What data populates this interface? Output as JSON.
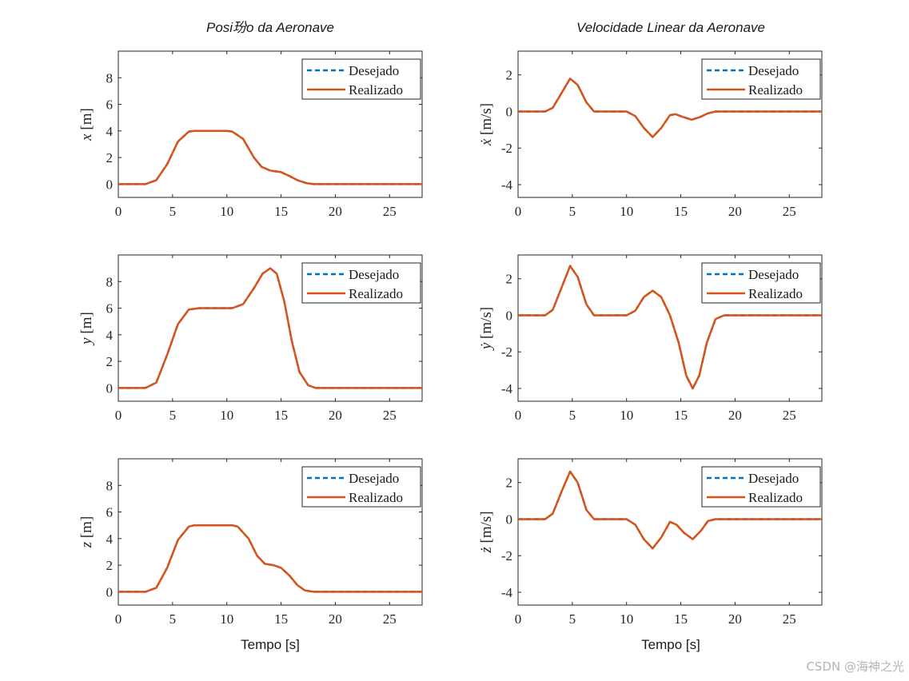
{
  "figure": {
    "titles": {
      "left": "Posi玢o da Aeronave",
      "right": "Velocidade Linear da Aeronave"
    },
    "xlabel": "Tempo [s]",
    "watermark": "CSDN @海神之光",
    "colors": {
      "desired": "#0072BD",
      "actual": "#D95319",
      "axis": "#262626"
    }
  },
  "chart_data": [
    {
      "id": "pos-x",
      "type": "line",
      "title": "Posi玢o da Aeronave",
      "ylabel": "x [m]",
      "ylabel_var": "x",
      "ylabel_unit": "[m]",
      "xlim": [
        0,
        28
      ],
      "ylim": [
        -1,
        10
      ],
      "xticks": [
        0,
        5,
        10,
        15,
        20,
        25
      ],
      "yticks": [
        0,
        2,
        4,
        6,
        8
      ],
      "legend": {
        "position": "top-right",
        "entries": [
          "Desejado",
          "Realizado"
        ]
      },
      "series": [
        {
          "name": "Desejado",
          "x": [
            0,
            2.5,
            3.5,
            4.5,
            5.5,
            6.5,
            7,
            10,
            10.5,
            11.5,
            12.5,
            13.2,
            14,
            15,
            15.8,
            16.5,
            17.3,
            18,
            28
          ],
          "y": [
            0,
            0,
            0.3,
            1.5,
            3.2,
            3.95,
            4,
            4,
            3.95,
            3.4,
            2.0,
            1.3,
            1.02,
            0.9,
            0.6,
            0.3,
            0.08,
            0,
            0
          ]
        },
        {
          "name": "Realizado",
          "x": [
            0,
            2.5,
            3.5,
            4.5,
            5.5,
            6.5,
            7,
            10,
            10.5,
            11.5,
            12.5,
            13.2,
            14,
            15,
            15.8,
            16.5,
            17.3,
            18,
            28
          ],
          "y": [
            0,
            0,
            0.3,
            1.5,
            3.2,
            3.95,
            4,
            4,
            3.95,
            3.4,
            2.0,
            1.3,
            1.02,
            0.9,
            0.6,
            0.3,
            0.08,
            0,
            0
          ]
        }
      ]
    },
    {
      "id": "vel-x",
      "type": "line",
      "title": "Velocidade Linear da Aeronave",
      "ylabel": "ẋ [m/s]",
      "ylabel_var": "ẋ",
      "ylabel_unit": "[m/s]",
      "xlim": [
        0,
        28
      ],
      "ylim": [
        -4.7,
        3.3
      ],
      "xticks": [
        0,
        5,
        10,
        15,
        20,
        25
      ],
      "yticks": [
        -4,
        -2,
        0,
        2
      ],
      "legend": {
        "position": "top-right",
        "entries": [
          "Desejado",
          "Realizado"
        ]
      },
      "series": [
        {
          "name": "Desejado",
          "x": [
            0,
            2.5,
            3.2,
            4,
            4.8,
            5.5,
            6.3,
            7,
            10,
            10.8,
            11.6,
            12.4,
            13.2,
            14,
            14.5,
            15.2,
            16,
            16.8,
            17.5,
            18.2,
            28
          ],
          "y": [
            0,
            0,
            0.2,
            1.0,
            1.8,
            1.45,
            0.5,
            0,
            0,
            -0.25,
            -0.9,
            -1.4,
            -0.9,
            -0.2,
            -0.15,
            -0.3,
            -0.45,
            -0.3,
            -0.1,
            0,
            0
          ]
        },
        {
          "name": "Realizado",
          "x": [
            0,
            2.5,
            3.2,
            4,
            4.8,
            5.5,
            6.3,
            7,
            10,
            10.8,
            11.6,
            12.4,
            13.2,
            14,
            14.5,
            15.2,
            16,
            16.8,
            17.5,
            18.2,
            28
          ],
          "y": [
            0,
            0,
            0.2,
            1.0,
            1.8,
            1.45,
            0.5,
            0,
            0,
            -0.25,
            -0.9,
            -1.4,
            -0.9,
            -0.2,
            -0.15,
            -0.3,
            -0.45,
            -0.3,
            -0.1,
            0,
            0
          ]
        }
      ]
    },
    {
      "id": "pos-y",
      "type": "line",
      "title": "",
      "ylabel": "y [m]",
      "ylabel_var": "y",
      "ylabel_unit": "[m]",
      "xlim": [
        0,
        28
      ],
      "ylim": [
        -1,
        10
      ],
      "xticks": [
        0,
        5,
        10,
        15,
        20,
        25
      ],
      "yticks": [
        0,
        2,
        4,
        6,
        8
      ],
      "legend": {
        "position": "top-right",
        "entries": [
          "Desejado",
          "Realizado"
        ]
      },
      "series": [
        {
          "name": "Desejado",
          "x": [
            0,
            2.5,
            3.5,
            4.5,
            5.5,
            6.5,
            7.5,
            10.5,
            11.5,
            12.5,
            13.3,
            14,
            14.6,
            15.3,
            16,
            16.7,
            17.5,
            18.2,
            28
          ],
          "y": [
            0,
            0,
            0.4,
            2.5,
            4.8,
            5.9,
            6.0,
            6.0,
            6.3,
            7.5,
            8.6,
            9.0,
            8.6,
            6.5,
            3.5,
            1.2,
            0.2,
            0,
            0
          ]
        },
        {
          "name": "Realizado",
          "x": [
            0,
            2.5,
            3.5,
            4.5,
            5.5,
            6.5,
            7.5,
            10.5,
            11.5,
            12.5,
            13.3,
            14,
            14.6,
            15.3,
            16,
            16.7,
            17.5,
            18.2,
            28
          ],
          "y": [
            0,
            0,
            0.4,
            2.5,
            4.8,
            5.9,
            6.0,
            6.0,
            6.3,
            7.5,
            8.6,
            9.0,
            8.6,
            6.5,
            3.5,
            1.2,
            0.2,
            0,
            0
          ]
        }
      ]
    },
    {
      "id": "vel-y",
      "type": "line",
      "title": "",
      "ylabel": "ẏ [m/s]",
      "ylabel_var": "ẏ",
      "ylabel_unit": "[m/s]",
      "xlim": [
        0,
        28
      ],
      "ylim": [
        -4.7,
        3.3
      ],
      "xticks": [
        0,
        5,
        10,
        15,
        20,
        25
      ],
      "yticks": [
        -4,
        -2,
        0,
        2
      ],
      "legend": {
        "position": "top-right",
        "entries": [
          "Desejado",
          "Realizado"
        ]
      },
      "series": [
        {
          "name": "Desejado",
          "x": [
            0,
            2.5,
            3.2,
            4,
            4.8,
            5.5,
            6.3,
            7,
            10,
            10.8,
            11.6,
            12.4,
            13.2,
            14,
            14.8,
            15.5,
            16.1,
            16.7,
            17.4,
            18.2,
            19,
            28
          ],
          "y": [
            0,
            0,
            0.3,
            1.5,
            2.7,
            2.1,
            0.6,
            0,
            0,
            0.25,
            1.0,
            1.35,
            1.0,
            0,
            -1.5,
            -3.3,
            -4.0,
            -3.3,
            -1.5,
            -0.2,
            0,
            0
          ]
        },
        {
          "name": "Realizado",
          "x": [
            0,
            2.5,
            3.2,
            4,
            4.8,
            5.5,
            6.3,
            7,
            10,
            10.8,
            11.6,
            12.4,
            13.2,
            14,
            14.8,
            15.5,
            16.1,
            16.7,
            17.4,
            18.2,
            19,
            28
          ],
          "y": [
            0,
            0,
            0.3,
            1.5,
            2.7,
            2.1,
            0.6,
            0,
            0,
            0.25,
            1.0,
            1.35,
            1.0,
            0,
            -1.5,
            -3.3,
            -4.0,
            -3.3,
            -1.5,
            -0.2,
            0,
            0
          ]
        }
      ]
    },
    {
      "id": "pos-z",
      "type": "line",
      "title": "",
      "ylabel": "z [m]",
      "ylabel_var": "z",
      "ylabel_unit": "[m]",
      "xlim": [
        0,
        28
      ],
      "ylim": [
        -1,
        10
      ],
      "xticks": [
        0,
        5,
        10,
        15,
        20,
        25
      ],
      "yticks": [
        0,
        2,
        4,
        6,
        8
      ],
      "legend": {
        "position": "top-right",
        "entries": [
          "Desejado",
          "Realizado"
        ]
      },
      "series": [
        {
          "name": "Desejado",
          "x": [
            0,
            2.5,
            3.5,
            4.5,
            5.5,
            6.5,
            7,
            10.5,
            11,
            12,
            12.8,
            13.5,
            14.3,
            15,
            15.8,
            16.5,
            17.2,
            18,
            28
          ],
          "y": [
            0,
            0,
            0.3,
            1.8,
            3.9,
            4.9,
            5.0,
            5.0,
            4.9,
            4.0,
            2.7,
            2.1,
            2.0,
            1.8,
            1.2,
            0.5,
            0.1,
            0,
            0
          ]
        },
        {
          "name": "Realizado",
          "x": [
            0,
            2.5,
            3.5,
            4.5,
            5.5,
            6.5,
            7,
            10.5,
            11,
            12,
            12.8,
            13.5,
            14.3,
            15,
            15.8,
            16.5,
            17.2,
            18,
            28
          ],
          "y": [
            0,
            0,
            0.3,
            1.8,
            3.9,
            4.9,
            5.0,
            5.0,
            4.9,
            4.0,
            2.7,
            2.1,
            2.0,
            1.8,
            1.2,
            0.5,
            0.1,
            0,
            0
          ]
        }
      ]
    },
    {
      "id": "vel-z",
      "type": "line",
      "title": "",
      "ylabel": "ż [m/s]",
      "ylabel_var": "ż",
      "ylabel_unit": "[m/s]",
      "xlim": [
        0,
        28
      ],
      "ylim": [
        -4.7,
        3.3
      ],
      "xticks": [
        0,
        5,
        10,
        15,
        20,
        25
      ],
      "yticks": [
        -4,
        -2,
        0,
        2
      ],
      "legend": {
        "position": "top-right",
        "entries": [
          "Desejado",
          "Realizado"
        ]
      },
      "series": [
        {
          "name": "Desejado",
          "x": [
            0,
            2.5,
            3.2,
            4,
            4.8,
            5.5,
            6.3,
            7,
            10,
            10.8,
            11.6,
            12.4,
            13.2,
            14,
            14.6,
            15.3,
            16.1,
            16.9,
            17.5,
            18.2,
            28
          ],
          "y": [
            0,
            0,
            0.3,
            1.5,
            2.6,
            2.0,
            0.5,
            0,
            0,
            -0.3,
            -1.1,
            -1.6,
            -1.0,
            -0.15,
            -0.3,
            -0.75,
            -1.1,
            -0.6,
            -0.1,
            0,
            0
          ]
        },
        {
          "name": "Realizado",
          "x": [
            0,
            2.5,
            3.2,
            4,
            4.8,
            5.5,
            6.3,
            7,
            10,
            10.8,
            11.6,
            12.4,
            13.2,
            14,
            14.6,
            15.3,
            16.1,
            16.9,
            17.5,
            18.2,
            28
          ],
          "y": [
            0,
            0,
            0.3,
            1.5,
            2.6,
            2.0,
            0.5,
            0,
            0,
            -0.3,
            -1.1,
            -1.6,
            -1.0,
            -0.15,
            -0.3,
            -0.75,
            -1.1,
            -0.6,
            -0.1,
            0,
            0
          ]
        }
      ]
    }
  ]
}
